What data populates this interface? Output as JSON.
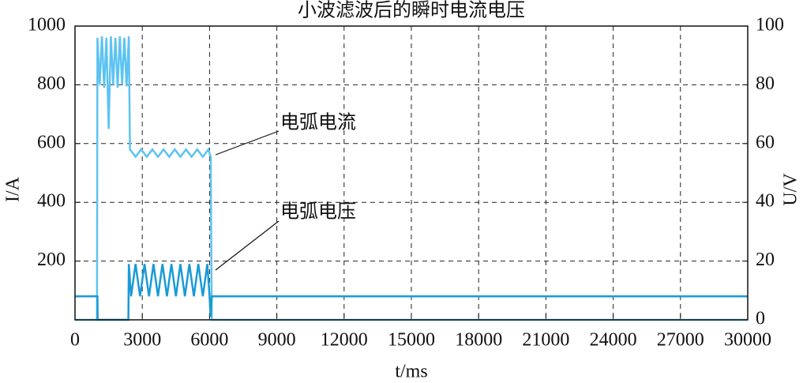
{
  "chart_data": {
    "type": "line",
    "title": "小波滤波后的瞬时电流电压",
    "x_label": "t/ms",
    "y_label": "I/A",
    "y2_label": "U/V",
    "xlim": [
      0,
      30000
    ],
    "xticks": [
      0,
      3000,
      6000,
      9000,
      12000,
      15000,
      18000,
      21000,
      24000,
      27000,
      30000
    ],
    "ylim": [
      0,
      1000
    ],
    "yticks": [
      200,
      400,
      600,
      800,
      1000
    ],
    "y2lim": [
      0,
      100
    ],
    "y2ticks": [
      0,
      20,
      40,
      60,
      80,
      100
    ],
    "grid": true,
    "series": [
      {
        "name": "电弧电流",
        "color": "#5cc3f2",
        "x": [
          0,
          980,
          1000,
          1100,
          1200,
          1300,
          1400,
          1500,
          1600,
          1700,
          1800,
          1900,
          2000,
          2100,
          2200,
          2300,
          2400,
          2450,
          2700,
          2950,
          3200,
          3450,
          3700,
          3950,
          4200,
          4450,
          4700,
          4950,
          5200,
          5450,
          5700,
          5950,
          6050,
          6100,
          30000
        ],
        "values": [
          0,
          0,
          960,
          800,
          965,
          790,
          960,
          650,
          965,
          800,
          960,
          790,
          965,
          800,
          960,
          795,
          965,
          580,
          555,
          580,
          555,
          580,
          555,
          580,
          555,
          580,
          555,
          580,
          555,
          580,
          555,
          580,
          555,
          0,
          0
        ]
      },
      {
        "name": "电弧电压",
        "color": "#1a9ad6",
        "axis": "y2",
        "x": [
          0,
          1000,
          1010,
          2380,
          2400,
          2500,
          2700,
          2900,
          3100,
          3300,
          3500,
          3700,
          3900,
          4100,
          4300,
          4500,
          4700,
          4900,
          5100,
          5300,
          5500,
          5700,
          5900,
          6000,
          6050,
          6100,
          9000,
          12000,
          15000,
          18000,
          21000,
          24000,
          27000,
          30000
        ],
        "values": [
          8,
          8,
          0,
          0,
          19,
          8,
          19,
          8,
          19,
          8,
          19,
          8,
          19,
          8,
          19,
          8,
          19,
          8,
          19,
          8,
          19,
          8,
          19,
          8,
          1,
          8,
          8,
          8,
          8,
          8,
          8,
          8,
          8,
          8
        ]
      }
    ]
  }
}
